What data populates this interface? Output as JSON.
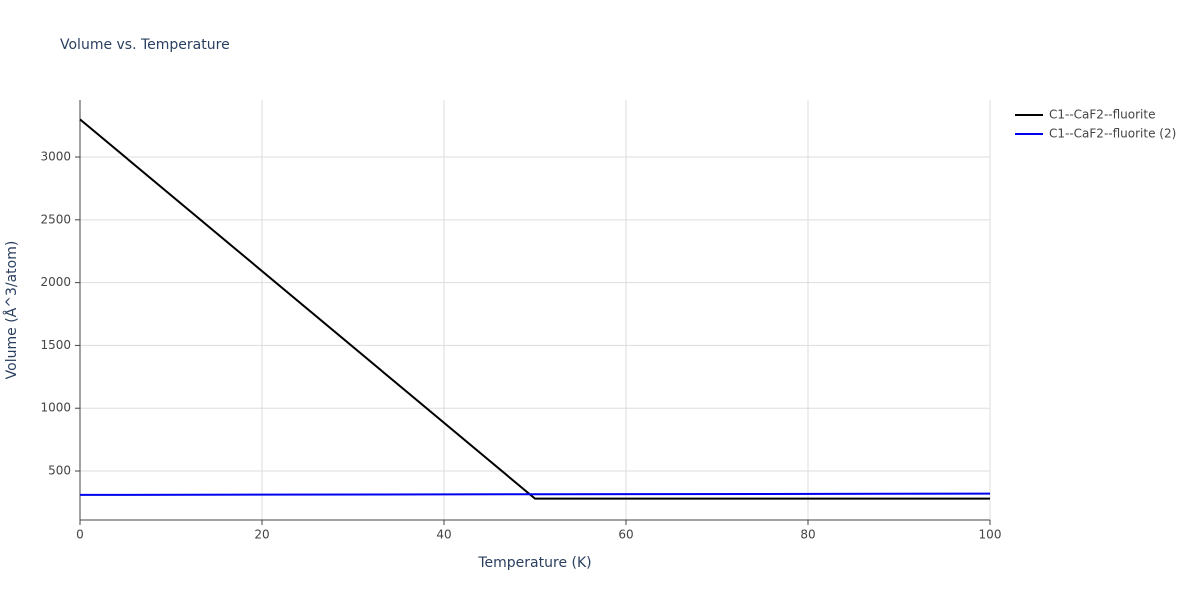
{
  "chart_data": {
    "type": "line",
    "title": "Volume vs. Temperature",
    "x_label": "Temperature (K)",
    "y_label": "Volume (Å^3/atom)",
    "x": [
      0,
      50,
      100
    ],
    "series": [
      {
        "name": "C1--CaF2--fluorite",
        "color": "#000000",
        "values": [
          3300,
          280,
          280
        ]
      },
      {
        "name": "C1--CaF2--fluorite (2)",
        "color": "#0000ee",
        "values": [
          310,
          315,
          320
        ]
      }
    ],
    "xlim": [
      0,
      100
    ],
    "xticks": [
      0,
      20,
      40,
      60,
      80,
      100
    ],
    "ylim": [
      110,
      3454
    ],
    "yticks": [
      500,
      1000,
      1500,
      2000,
      2500,
      3000
    ],
    "grid": true,
    "legend": "right"
  }
}
